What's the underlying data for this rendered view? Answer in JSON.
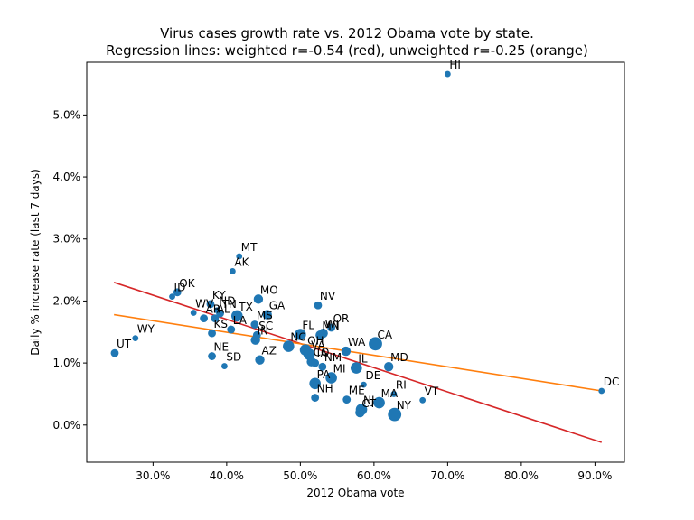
{
  "chart_data": {
    "type": "scatter",
    "title": "Virus cases growth rate vs. 2012 Obama vote by state.",
    "subtitle": "Regression lines: weighted r=-0.54 (red), unweighted r=-0.25 (orange)",
    "xlabel": "2012 Obama vote",
    "ylabel": "Daily % increase rate (last 7 days)",
    "xlim": [
      0.21,
      0.94
    ],
    "ylim": [
      -0.006,
      0.0585
    ],
    "xticks": [
      {
        "value": 0.3,
        "label": "30.0%"
      },
      {
        "value": 0.4,
        "label": "40.0%"
      },
      {
        "value": 0.5,
        "label": "50.0%"
      },
      {
        "value": 0.6,
        "label": "60.0%"
      },
      {
        "value": 0.7,
        "label": "70.0%"
      },
      {
        "value": 0.8,
        "label": "80.0%"
      },
      {
        "value": 0.9,
        "label": "90.0%"
      }
    ],
    "yticks": [
      {
        "value": 0.0,
        "label": "0.0%"
      },
      {
        "value": 0.01,
        "label": "1.0%"
      },
      {
        "value": 0.02,
        "label": "2.0%"
      },
      {
        "value": 0.03,
        "label": "3.0%"
      },
      {
        "value": 0.04,
        "label": "4.0%"
      },
      {
        "value": 0.05,
        "label": "5.0%"
      }
    ],
    "grid": false,
    "marker_color": "#1f77b4",
    "points": [
      {
        "label": "HI",
        "x": 0.7,
        "y": 0.0566,
        "size": 1
      },
      {
        "label": "MT",
        "x": 0.417,
        "y": 0.0272,
        "size": 1
      },
      {
        "label": "AK",
        "x": 0.408,
        "y": 0.0248,
        "size": 1
      },
      {
        "label": "OK",
        "x": 0.333,
        "y": 0.0214,
        "size": 2
      },
      {
        "label": "ID",
        "x": 0.326,
        "y": 0.0207,
        "size": 1
      },
      {
        "label": "KY",
        "x": 0.378,
        "y": 0.0195,
        "size": 2
      },
      {
        "label": "MO",
        "x": 0.443,
        "y": 0.0203,
        "size": 3
      },
      {
        "label": "ND",
        "x": 0.387,
        "y": 0.0185,
        "size": 1
      },
      {
        "label": "WV",
        "x": 0.355,
        "y": 0.0181,
        "size": 1
      },
      {
        "label": "TN",
        "x": 0.391,
        "y": 0.018,
        "size": 2
      },
      {
        "label": "AR",
        "x": 0.369,
        "y": 0.0172,
        "size": 2
      },
      {
        "label": "AL",
        "x": 0.384,
        "y": 0.0172,
        "size": 2
      },
      {
        "label": "TX",
        "x": 0.414,
        "y": 0.0176,
        "size": 4
      },
      {
        "label": "GA",
        "x": 0.455,
        "y": 0.0178,
        "size": 3
      },
      {
        "label": "NV",
        "x": 0.524,
        "y": 0.0193,
        "size": 2
      },
      {
        "label": "MS",
        "x": 0.438,
        "y": 0.0162,
        "size": 2
      },
      {
        "label": "LA",
        "x": 0.406,
        "y": 0.0154,
        "size": 2
      },
      {
        "label": "SC",
        "x": 0.441,
        "y": 0.0145,
        "size": 2
      },
      {
        "label": "KS",
        "x": 0.38,
        "y": 0.0148,
        "size": 2
      },
      {
        "label": "OR",
        "x": 0.542,
        "y": 0.0157,
        "size": 2
      },
      {
        "label": "WI",
        "x": 0.531,
        "y": 0.0148,
        "size": 3
      },
      {
        "label": "FL",
        "x": 0.5,
        "y": 0.0146,
        "size": 4
      },
      {
        "label": "MN",
        "x": 0.527,
        "y": 0.0145,
        "size": 3
      },
      {
        "label": "IN",
        "x": 0.439,
        "y": 0.0137,
        "size": 3
      },
      {
        "label": "NC",
        "x": 0.484,
        "y": 0.0127,
        "size": 4
      },
      {
        "label": "OH",
        "x": 0.507,
        "y": 0.0121,
        "size": 4
      },
      {
        "label": "VA",
        "x": 0.512,
        "y": 0.0114,
        "size": 4
      },
      {
        "label": "CO",
        "x": 0.515,
        "y": 0.0102,
        "size": 3
      },
      {
        "label": "IA",
        "x": 0.52,
        "y": 0.01,
        "size": 2
      },
      {
        "label": "NM",
        "x": 0.53,
        "y": 0.0094,
        "size": 2
      },
      {
        "label": "WA",
        "x": 0.562,
        "y": 0.0119,
        "size": 3
      },
      {
        "label": "CA",
        "x": 0.602,
        "y": 0.0131,
        "size": 5
      },
      {
        "label": "MD",
        "x": 0.62,
        "y": 0.0094,
        "size": 3
      },
      {
        "label": "IL",
        "x": 0.576,
        "y": 0.0092,
        "size": 4
      },
      {
        "label": "MI",
        "x": 0.542,
        "y": 0.0076,
        "size": 4
      },
      {
        "label": "PA",
        "x": 0.52,
        "y": 0.0067,
        "size": 4
      },
      {
        "label": "DE",
        "x": 0.586,
        "y": 0.0065,
        "size": 1
      },
      {
        "label": "NE",
        "x": 0.38,
        "y": 0.0111,
        "size": 2
      },
      {
        "label": "AZ",
        "x": 0.445,
        "y": 0.0105,
        "size": 3
      },
      {
        "label": "SD",
        "x": 0.397,
        "y": 0.0095,
        "size": 1
      },
      {
        "label": "WY",
        "x": 0.276,
        "y": 0.014,
        "size": 1
      },
      {
        "label": "UT",
        "x": 0.248,
        "y": 0.0116,
        "size": 2
      },
      {
        "label": "NH",
        "x": 0.52,
        "y": 0.0044,
        "size": 2
      },
      {
        "label": "ME",
        "x": 0.563,
        "y": 0.0041,
        "size": 2
      },
      {
        "label": "RI",
        "x": 0.627,
        "y": 0.005,
        "size": 1
      },
      {
        "label": "MA",
        "x": 0.607,
        "y": 0.0036,
        "size": 4
      },
      {
        "label": "NJ",
        "x": 0.583,
        "y": 0.0025,
        "size": 4
      },
      {
        "label": "CT",
        "x": 0.581,
        "y": 0.002,
        "size": 3
      },
      {
        "label": "VT",
        "x": 0.666,
        "y": 0.004,
        "size": 1
      },
      {
        "label": "NY",
        "x": 0.628,
        "y": 0.0017,
        "size": 5
      },
      {
        "label": "DC",
        "x": 0.909,
        "y": 0.0055,
        "size": 1
      }
    ],
    "regression_lines": [
      {
        "name": "weighted",
        "color": "#d62728",
        "x": [
          0.247,
          0.909
        ],
        "y": [
          0.023,
          -0.0028
        ]
      },
      {
        "name": "unweighted",
        "color": "#ff7f0e",
        "x": [
          0.247,
          0.909
        ],
        "y": [
          0.0178,
          0.0055
        ]
      }
    ]
  }
}
